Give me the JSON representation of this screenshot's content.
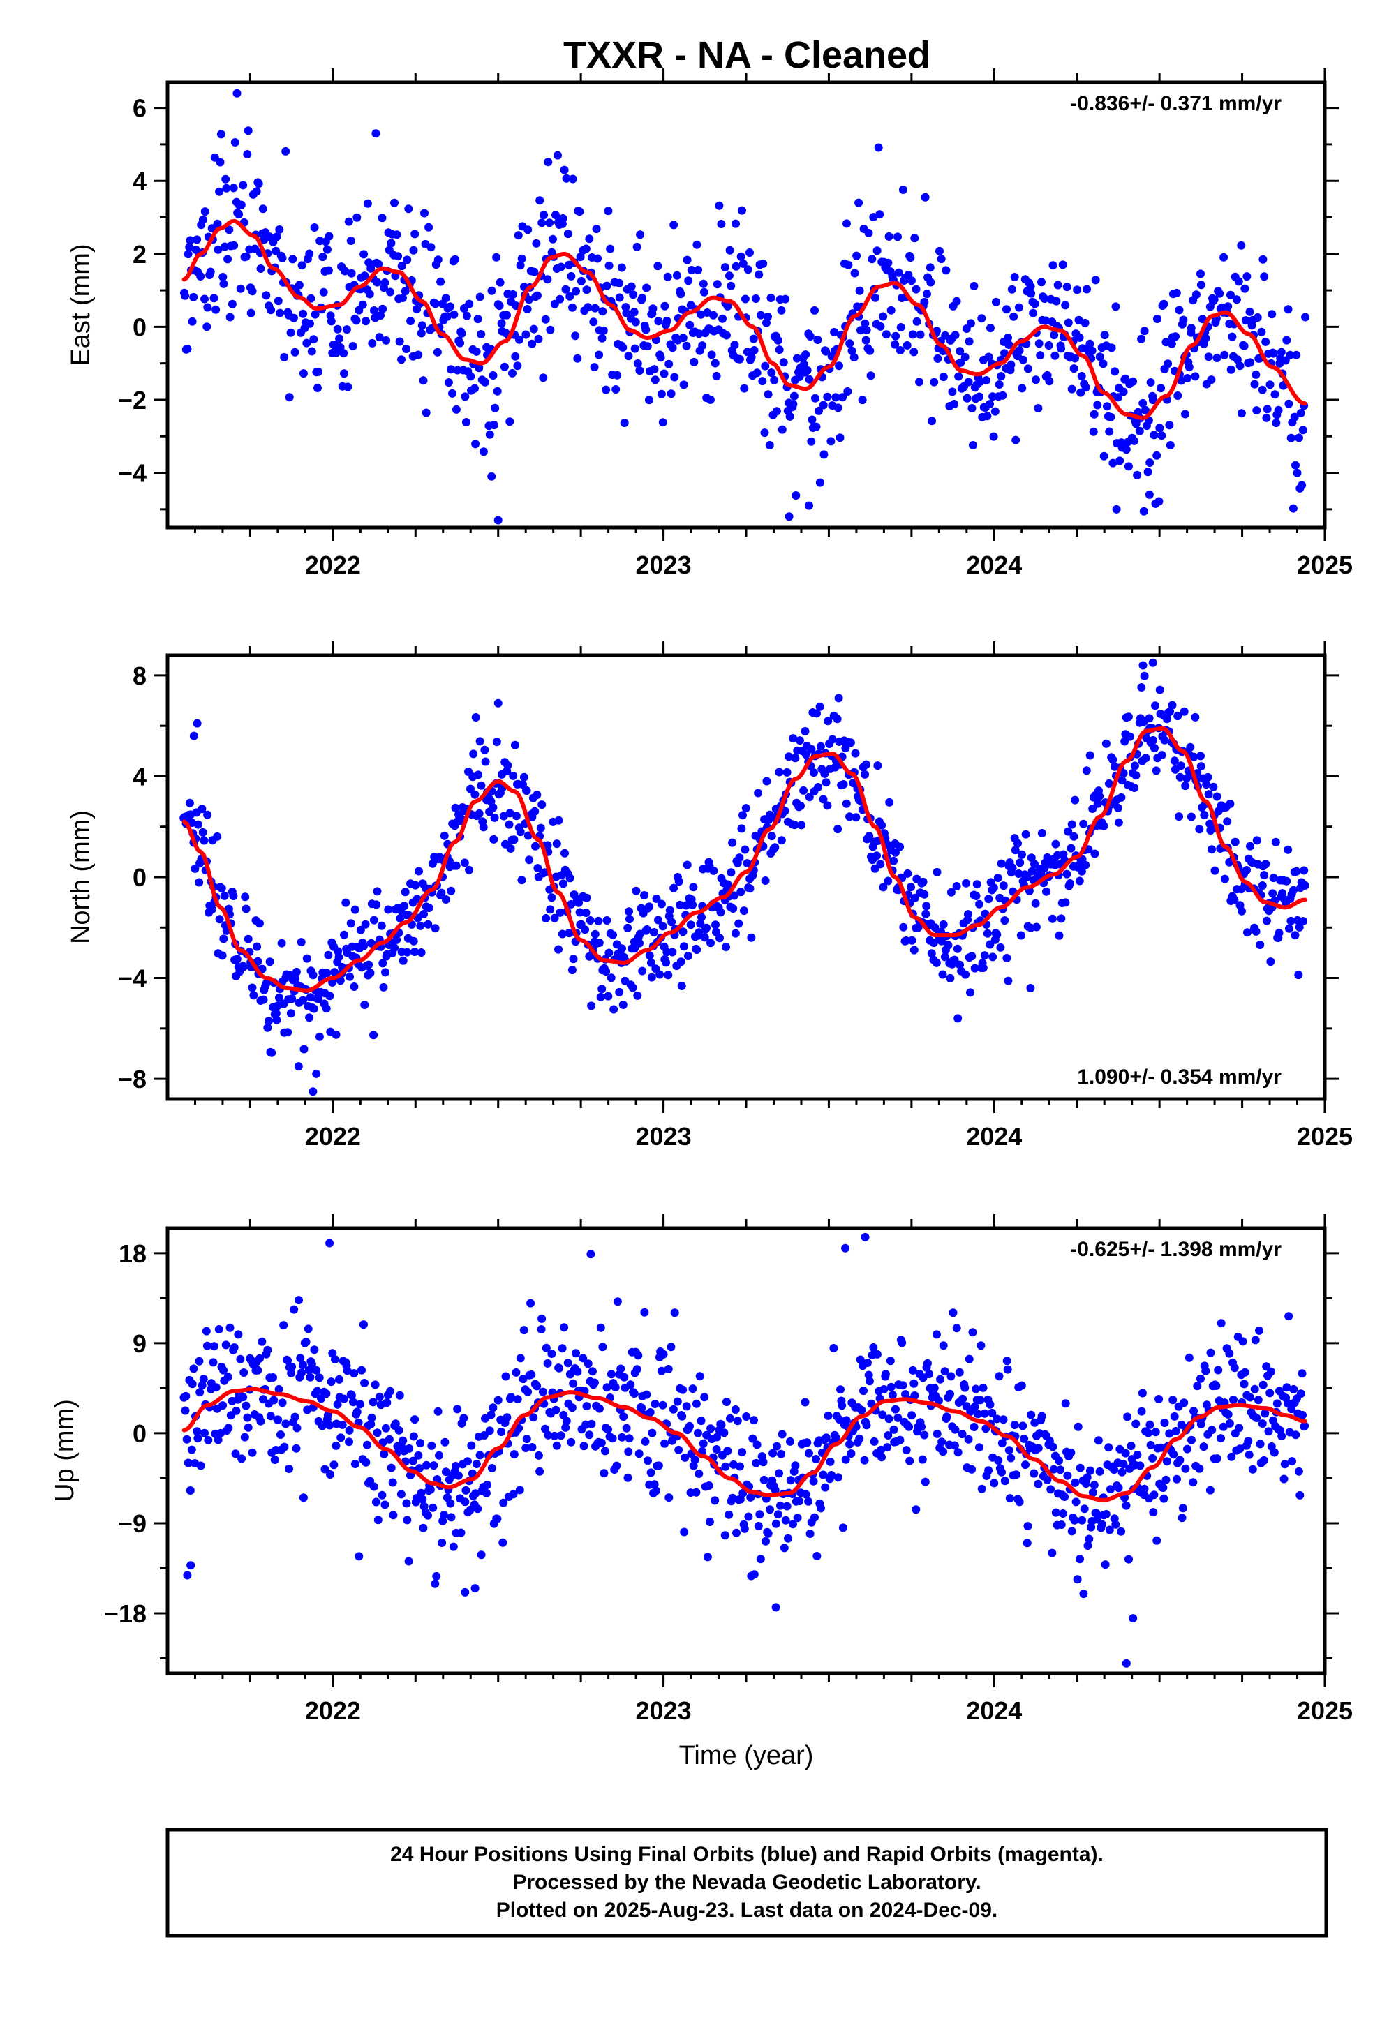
{
  "title": "TXXR  - NA - Cleaned",
  "footer": {
    "lines": [
      "24 Hour Positions Using Final Orbits (blue) and Rapid Orbits (magenta).",
      "Processed by the Nevada Geodetic Laboratory.",
      "Plotted on 2025-Aug-23. Last data on 2024-Dec-09."
    ]
  },
  "colors": {
    "points": "#0000ff",
    "fit": "#ff0000",
    "frame": "#000000"
  },
  "chart_data": [
    {
      "type": "scatter",
      "ylabel": "East (mm)",
      "xlabel": "",
      "xlim": [
        2021.5,
        2025.0
      ],
      "ylim": [
        -5.5,
        6.7
      ],
      "xticks": [
        2022,
        2023,
        2024,
        2025
      ],
      "yticks": [
        -4,
        -2,
        0,
        2,
        4,
        6
      ],
      "rate": "-0.836+/- 0.371 mm/yr",
      "rate_position": "top-right",
      "data_start": 2021.55,
      "data_end": 2024.94,
      "fit_points": [
        [
          2021.55,
          1.3
        ],
        [
          2021.6,
          2.0
        ],
        [
          2021.66,
          2.7
        ],
        [
          2021.7,
          2.9
        ],
        [
          2021.76,
          2.5
        ],
        [
          2021.82,
          1.6
        ],
        [
          2021.9,
          0.8
        ],
        [
          2021.95,
          0.5
        ],
        [
          2022.02,
          0.6
        ],
        [
          2022.08,
          1.1
        ],
        [
          2022.15,
          1.6
        ],
        [
          2022.2,
          1.5
        ],
        [
          2022.27,
          0.7
        ],
        [
          2022.33,
          -0.2
        ],
        [
          2022.4,
          -0.9
        ],
        [
          2022.45,
          -1.0
        ],
        [
          2022.52,
          -0.4
        ],
        [
          2022.6,
          1.1
        ],
        [
          2022.66,
          1.9
        ],
        [
          2022.7,
          2.0
        ],
        [
          2022.77,
          1.5
        ],
        [
          2022.84,
          0.6
        ],
        [
          2022.9,
          -0.1
        ],
        [
          2022.95,
          -0.3
        ],
        [
          2023.02,
          -0.1
        ],
        [
          2023.08,
          0.4
        ],
        [
          2023.15,
          0.8
        ],
        [
          2023.2,
          0.7
        ],
        [
          2023.27,
          0.0
        ],
        [
          2023.33,
          -1.0
        ],
        [
          2023.38,
          -1.6
        ],
        [
          2023.43,
          -1.7
        ],
        [
          2023.5,
          -1.1
        ],
        [
          2023.58,
          0.3
        ],
        [
          2023.65,
          1.1
        ],
        [
          2023.7,
          1.2
        ],
        [
          2023.77,
          0.6
        ],
        [
          2023.84,
          -0.5
        ],
        [
          2023.9,
          -1.2
        ],
        [
          2023.95,
          -1.3
        ],
        [
          2024.02,
          -1.0
        ],
        [
          2024.08,
          -0.4
        ],
        [
          2024.15,
          0.0
        ],
        [
          2024.2,
          -0.1
        ],
        [
          2024.27,
          -0.8
        ],
        [
          2024.33,
          -1.8
        ],
        [
          2024.4,
          -2.4
        ],
        [
          2024.45,
          -2.5
        ],
        [
          2024.52,
          -1.9
        ],
        [
          2024.6,
          -0.5
        ],
        [
          2024.66,
          0.3
        ],
        [
          2024.7,
          0.4
        ],
        [
          2024.77,
          -0.2
        ],
        [
          2024.84,
          -1.1
        ],
        [
          2024.94,
          -2.1
        ]
      ],
      "scatter_sigma": 1.2,
      "n_points": 1050,
      "outliers": [
        [
          2021.71,
          6.4
        ],
        [
          2022.13,
          5.3
        ],
        [
          2022.5,
          -5.3
        ],
        [
          2022.48,
          -4.1
        ],
        [
          2023.38,
          -5.2
        ],
        [
          2023.44,
          -4.9
        ],
        [
          2024.37,
          -5.0
        ],
        [
          2024.47,
          -4.6
        ],
        [
          2023.59,
          3.4
        ],
        [
          2022.68,
          4.7
        ]
      ]
    },
    {
      "type": "scatter",
      "ylabel": "North (mm)",
      "xlabel": "",
      "xlim": [
        2021.5,
        2025.0
      ],
      "ylim": [
        -8.8,
        8.8
      ],
      "xticks": [
        2022,
        2023,
        2024,
        2025
      ],
      "yticks": [
        -8,
        -4,
        0,
        4,
        8
      ],
      "rate": "1.090+/- 0.354 mm/yr",
      "rate_position": "bottom-right",
      "data_start": 2021.55,
      "data_end": 2024.94,
      "fit_points": [
        [
          2021.55,
          2.2
        ],
        [
          2021.6,
          1.0
        ],
        [
          2021.66,
          -1.2
        ],
        [
          2021.72,
          -2.9
        ],
        [
          2021.8,
          -4.0
        ],
        [
          2021.86,
          -4.4
        ],
        [
          2021.92,
          -4.5
        ],
        [
          2022.0,
          -4.0
        ],
        [
          2022.08,
          -3.3
        ],
        [
          2022.15,
          -2.6
        ],
        [
          2022.22,
          -1.8
        ],
        [
          2022.3,
          -0.5
        ],
        [
          2022.37,
          1.4
        ],
        [
          2022.43,
          3.0
        ],
        [
          2022.5,
          3.8
        ],
        [
          2022.55,
          3.4
        ],
        [
          2022.62,
          1.5
        ],
        [
          2022.68,
          -0.6
        ],
        [
          2022.75,
          -2.5
        ],
        [
          2022.82,
          -3.3
        ],
        [
          2022.88,
          -3.4
        ],
        [
          2022.95,
          -2.9
        ],
        [
          2023.02,
          -2.2
        ],
        [
          2023.1,
          -1.4
        ],
        [
          2023.18,
          -0.8
        ],
        [
          2023.25,
          0.2
        ],
        [
          2023.32,
          1.9
        ],
        [
          2023.4,
          3.9
        ],
        [
          2023.46,
          4.8
        ],
        [
          2023.51,
          4.9
        ],
        [
          2023.57,
          4.1
        ],
        [
          2023.64,
          2.0
        ],
        [
          2023.7,
          0.0
        ],
        [
          2023.76,
          -1.6
        ],
        [
          2023.82,
          -2.3
        ],
        [
          2023.88,
          -2.3
        ],
        [
          2023.95,
          -1.9
        ],
        [
          2024.02,
          -1.2
        ],
        [
          2024.1,
          -0.4
        ],
        [
          2024.18,
          0.1
        ],
        [
          2024.25,
          0.8
        ],
        [
          2024.32,
          2.4
        ],
        [
          2024.4,
          4.6
        ],
        [
          2024.46,
          5.8
        ],
        [
          2024.51,
          5.9
        ],
        [
          2024.57,
          5.0
        ],
        [
          2024.64,
          3.0
        ],
        [
          2024.7,
          1.2
        ],
        [
          2024.76,
          -0.2
        ],
        [
          2024.82,
          -1.0
        ],
        [
          2024.88,
          -1.2
        ],
        [
          2024.94,
          -0.9
        ]
      ],
      "scatter_sigma": 1.1,
      "n_points": 1050,
      "outliers": [
        [
          2021.59,
          6.1
        ],
        [
          2021.58,
          5.6
        ],
        [
          2021.94,
          -8.5
        ],
        [
          2021.95,
          -7.8
        ],
        [
          2022.5,
          6.9
        ],
        [
          2023.53,
          7.1
        ],
        [
          2024.45,
          8.4
        ],
        [
          2024.48,
          8.5
        ],
        [
          2023.89,
          -5.6
        ],
        [
          2024.11,
          -4.4
        ]
      ]
    },
    {
      "type": "scatter",
      "ylabel": "Up (mm)",
      "xlabel": "Time (year)",
      "xlim": [
        2021.5,
        2025.0
      ],
      "ylim": [
        -24.0,
        20.5
      ],
      "xticks": [
        2022,
        2023,
        2024,
        2025
      ],
      "yticks": [
        -18,
        -9,
        0,
        9,
        18
      ],
      "rate": "-0.625+/- 1.398 mm/yr",
      "rate_position": "top-right",
      "data_start": 2021.55,
      "data_end": 2024.94,
      "fit_points": [
        [
          2021.55,
          0.3
        ],
        [
          2021.62,
          2.8
        ],
        [
          2021.7,
          4.2
        ],
        [
          2021.76,
          4.4
        ],
        [
          2021.84,
          3.9
        ],
        [
          2021.92,
          3.2
        ],
        [
          2022.0,
          2.2
        ],
        [
          2022.08,
          0.6
        ],
        [
          2022.16,
          -1.6
        ],
        [
          2022.24,
          -3.8
        ],
        [
          2022.3,
          -5.0
        ],
        [
          2022.35,
          -5.4
        ],
        [
          2022.42,
          -4.6
        ],
        [
          2022.5,
          -1.5
        ],
        [
          2022.58,
          1.8
        ],
        [
          2022.65,
          3.6
        ],
        [
          2022.72,
          4.1
        ],
        [
          2022.8,
          3.5
        ],
        [
          2022.88,
          2.6
        ],
        [
          2022.96,
          1.5
        ],
        [
          2023.04,
          0.0
        ],
        [
          2023.12,
          -2.3
        ],
        [
          2023.2,
          -4.5
        ],
        [
          2023.27,
          -5.9
        ],
        [
          2023.32,
          -6.2
        ],
        [
          2023.38,
          -6.0
        ],
        [
          2023.45,
          -4.0
        ],
        [
          2023.52,
          -1.1
        ],
        [
          2023.6,
          1.7
        ],
        [
          2023.67,
          3.2
        ],
        [
          2023.73,
          3.4
        ],
        [
          2023.8,
          3.0
        ],
        [
          2023.88,
          2.2
        ],
        [
          2023.96,
          1.2
        ],
        [
          2024.04,
          -0.3
        ],
        [
          2024.12,
          -2.6
        ],
        [
          2024.2,
          -4.8
        ],
        [
          2024.27,
          -6.3
        ],
        [
          2024.33,
          -6.7
        ],
        [
          2024.4,
          -6.0
        ],
        [
          2024.48,
          -3.4
        ],
        [
          2024.55,
          -0.6
        ],
        [
          2024.62,
          1.6
        ],
        [
          2024.68,
          2.6
        ],
        [
          2024.74,
          2.8
        ],
        [
          2024.82,
          2.5
        ],
        [
          2024.88,
          1.8
        ],
        [
          2024.94,
          1.2
        ]
      ],
      "scatter_sigma": 4.0,
      "n_points": 1050,
      "outliers": [
        [
          2021.99,
          19.0
        ],
        [
          2023.61,
          19.6
        ],
        [
          2023.55,
          18.5
        ],
        [
          2021.56,
          -14.2
        ],
        [
          2021.57,
          -13.2
        ],
        [
          2024.4,
          -23.0
        ],
        [
          2024.42,
          -18.5
        ],
        [
          2022.43,
          -15.5
        ],
        [
          2022.4,
          -15.9
        ],
        [
          2023.34,
          -17.4
        ],
        [
          2022.78,
          17.9
        ]
      ]
    }
  ]
}
